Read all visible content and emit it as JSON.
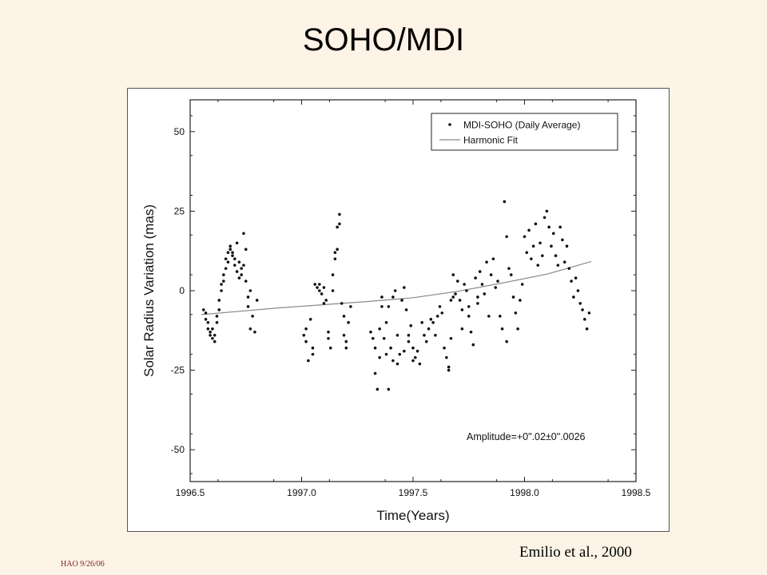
{
  "slide": {
    "title": "SOHO/MDI",
    "citation": "Emilio et al., 2000",
    "footer": "HAO 9/26/06"
  },
  "chart_data": {
    "type": "scatter",
    "title": "",
    "xlabel": "Time(Years)",
    "ylabel": "Solar Radius Variation (mas)",
    "xlim": [
      1996.5,
      1998.5
    ],
    "ylim": [
      -60,
      60
    ],
    "xticks": [
      1996.5,
      1997.0,
      1997.5,
      1998.0,
      1998.5
    ],
    "xtick_labels": [
      "1996.5",
      "1997.0",
      "1997.5",
      "1998.0",
      "1998.5"
    ],
    "yticks": [
      -50,
      -25,
      0,
      25,
      50
    ],
    "ytick_labels": [
      "-50",
      "-25",
      "0",
      "25",
      "50"
    ],
    "grid": false,
    "legend": {
      "position": "top-right",
      "entries": [
        {
          "label": "MDI-SOHO (Daily Average)",
          "marker": "dot"
        },
        {
          "label": "Harmonic Fit",
          "marker": "line"
        }
      ]
    },
    "annotation": "Amplitude=+0\".02±0\".0026",
    "colors": {
      "points": "#111111",
      "fit": "#888888"
    },
    "series": [
      {
        "name": "MDI-SOHO (Daily Average)",
        "kind": "points",
        "points": [
          [
            1996.56,
            -6
          ],
          [
            1996.57,
            -9
          ],
          [
            1996.57,
            -7
          ],
          [
            1996.58,
            -10
          ],
          [
            1996.58,
            -12
          ],
          [
            1996.59,
            -14
          ],
          [
            1996.59,
            -13
          ],
          [
            1996.6,
            -15
          ],
          [
            1996.6,
            -12
          ],
          [
            1996.61,
            -16
          ],
          [
            1996.61,
            -14
          ],
          [
            1996.62,
            -10
          ],
          [
            1996.62,
            -8
          ],
          [
            1996.63,
            -6
          ],
          [
            1996.63,
            -3
          ],
          [
            1996.64,
            0
          ],
          [
            1996.64,
            2
          ],
          [
            1996.65,
            3
          ],
          [
            1996.65,
            5
          ],
          [
            1996.66,
            7
          ],
          [
            1996.66,
            10
          ],
          [
            1996.67,
            9
          ],
          [
            1996.67,
            12
          ],
          [
            1996.68,
            13
          ],
          [
            1996.68,
            14
          ],
          [
            1996.69,
            11
          ],
          [
            1996.69,
            12
          ],
          [
            1996.7,
            10
          ],
          [
            1996.7,
            8
          ],
          [
            1996.71,
            6
          ],
          [
            1996.71,
            15
          ],
          [
            1996.72,
            9
          ],
          [
            1996.72,
            4
          ],
          [
            1996.73,
            7
          ],
          [
            1996.73,
            5
          ],
          [
            1996.74,
            8
          ],
          [
            1996.74,
            18
          ],
          [
            1996.75,
            13
          ],
          [
            1996.75,
            3
          ],
          [
            1996.76,
            -2
          ],
          [
            1996.76,
            -5
          ],
          [
            1996.77,
            -12
          ],
          [
            1996.77,
            0
          ],
          [
            1996.78,
            -8
          ],
          [
            1996.79,
            -13
          ],
          [
            1996.8,
            -3
          ],
          [
            1997.01,
            -14
          ],
          [
            1997.02,
            -12
          ],
          [
            1997.02,
            -16
          ],
          [
            1997.03,
            -22
          ],
          [
            1997.04,
            -9
          ],
          [
            1997.05,
            -18
          ],
          [
            1997.05,
            -20
          ],
          [
            1997.06,
            2
          ],
          [
            1997.07,
            1
          ],
          [
            1997.08,
            0
          ],
          [
            1997.08,
            2
          ],
          [
            1997.09,
            -1
          ],
          [
            1997.1,
            1
          ],
          [
            1997.1,
            -4
          ],
          [
            1997.11,
            -3
          ],
          [
            1997.12,
            -13
          ],
          [
            1997.12,
            -15
          ],
          [
            1997.13,
            -18
          ],
          [
            1997.14,
            0
          ],
          [
            1997.14,
            5
          ],
          [
            1997.15,
            10
          ],
          [
            1997.15,
            12
          ],
          [
            1997.16,
            13
          ],
          [
            1997.16,
            20
          ],
          [
            1997.17,
            21
          ],
          [
            1997.17,
            24
          ],
          [
            1997.18,
            -4
          ],
          [
            1997.19,
            -8
          ],
          [
            1997.19,
            -14
          ],
          [
            1997.2,
            -16
          ],
          [
            1997.2,
            -18
          ],
          [
            1997.21,
            -10
          ],
          [
            1997.22,
            -5
          ],
          [
            1997.31,
            -13
          ],
          [
            1997.32,
            -15
          ],
          [
            1997.33,
            -18
          ],
          [
            1997.33,
            -26
          ],
          [
            1997.34,
            -31
          ],
          [
            1997.35,
            -21
          ],
          [
            1997.35,
            -12
          ],
          [
            1997.36,
            -5
          ],
          [
            1997.36,
            -2
          ],
          [
            1997.37,
            -15
          ],
          [
            1997.38,
            -20
          ],
          [
            1997.38,
            -10
          ],
          [
            1997.39,
            -5
          ],
          [
            1997.39,
            -31
          ],
          [
            1997.4,
            -18
          ],
          [
            1997.41,
            -22
          ],
          [
            1997.41,
            -2
          ],
          [
            1997.42,
            0
          ],
          [
            1997.43,
            -14
          ],
          [
            1997.43,
            -23
          ],
          [
            1997.44,
            -20
          ],
          [
            1997.45,
            -3
          ],
          [
            1997.46,
            1
          ],
          [
            1997.46,
            -19
          ],
          [
            1997.47,
            -6
          ],
          [
            1997.48,
            -14
          ],
          [
            1997.48,
            -16
          ],
          [
            1997.49,
            -11
          ],
          [
            1997.5,
            -18
          ],
          [
            1997.5,
            -22
          ],
          [
            1997.51,
            -21
          ],
          [
            1997.52,
            -19
          ],
          [
            1997.53,
            -23
          ],
          [
            1997.54,
            -10
          ],
          [
            1997.55,
            -14
          ],
          [
            1997.56,
            -16
          ],
          [
            1997.57,
            -12
          ],
          [
            1997.58,
            -9
          ],
          [
            1997.59,
            -10
          ],
          [
            1997.6,
            -14
          ],
          [
            1997.61,
            -8
          ],
          [
            1997.62,
            -5
          ],
          [
            1997.63,
            -7
          ],
          [
            1997.64,
            -18
          ],
          [
            1997.65,
            -21
          ],
          [
            1997.66,
            -24
          ],
          [
            1997.66,
            -25
          ],
          [
            1997.67,
            -3
          ],
          [
            1997.67,
            -15
          ],
          [
            1997.68,
            5
          ],
          [
            1997.68,
            -2
          ],
          [
            1997.69,
            -1
          ],
          [
            1997.7,
            3
          ],
          [
            1997.71,
            -3
          ],
          [
            1997.72,
            -12
          ],
          [
            1997.72,
            -6
          ],
          [
            1997.73,
            2
          ],
          [
            1997.74,
            0
          ],
          [
            1997.75,
            -5
          ],
          [
            1997.75,
            -8
          ],
          [
            1997.76,
            -13
          ],
          [
            1997.77,
            -17
          ],
          [
            1997.78,
            4
          ],
          [
            1997.79,
            -2
          ],
          [
            1997.79,
            -4
          ],
          [
            1997.8,
            6
          ],
          [
            1997.81,
            2
          ],
          [
            1997.82,
            -1
          ],
          [
            1997.83,
            9
          ],
          [
            1997.84,
            -8
          ],
          [
            1997.85,
            5
          ],
          [
            1997.86,
            10
          ],
          [
            1997.87,
            1
          ],
          [
            1997.88,
            3
          ],
          [
            1997.89,
            -8
          ],
          [
            1997.9,
            -12
          ],
          [
            1997.91,
            28
          ],
          [
            1997.92,
            17
          ],
          [
            1997.92,
            -16
          ],
          [
            1997.93,
            7
          ],
          [
            1997.94,
            5
          ],
          [
            1997.95,
            -2
          ],
          [
            1997.96,
            -7
          ],
          [
            1997.97,
            -12
          ],
          [
            1997.98,
            -3
          ],
          [
            1997.99,
            2
          ],
          [
            1998.0,
            17
          ],
          [
            1998.01,
            12
          ],
          [
            1998.02,
            19
          ],
          [
            1998.03,
            10
          ],
          [
            1998.04,
            14
          ],
          [
            1998.05,
            21
          ],
          [
            1998.06,
            8
          ],
          [
            1998.07,
            15
          ],
          [
            1998.08,
            11
          ],
          [
            1998.09,
            23
          ],
          [
            1998.1,
            25
          ],
          [
            1998.11,
            20
          ],
          [
            1998.12,
            14
          ],
          [
            1998.13,
            18
          ],
          [
            1998.14,
            11
          ],
          [
            1998.15,
            8
          ],
          [
            1998.16,
            20
          ],
          [
            1998.17,
            16
          ],
          [
            1998.18,
            9
          ],
          [
            1998.19,
            14
          ],
          [
            1998.2,
            7
          ],
          [
            1998.21,
            3
          ],
          [
            1998.22,
            -2
          ],
          [
            1998.23,
            4
          ],
          [
            1998.24,
            0
          ],
          [
            1998.25,
            -4
          ],
          [
            1998.26,
            -6
          ],
          [
            1998.27,
            -9
          ],
          [
            1998.28,
            -12
          ],
          [
            1998.29,
            -7
          ]
        ]
      },
      {
        "name": "Harmonic Fit",
        "kind": "line",
        "points": [
          [
            1996.55,
            -7.5
          ],
          [
            1996.7,
            -6.6
          ],
          [
            1996.9,
            -5.4
          ],
          [
            1997.1,
            -4.4
          ],
          [
            1997.3,
            -3.4
          ],
          [
            1997.5,
            -2.2
          ],
          [
            1997.7,
            -0.2
          ],
          [
            1997.9,
            2.4
          ],
          [
            1998.1,
            5.2
          ],
          [
            1998.3,
            9.2
          ]
        ]
      }
    ]
  }
}
